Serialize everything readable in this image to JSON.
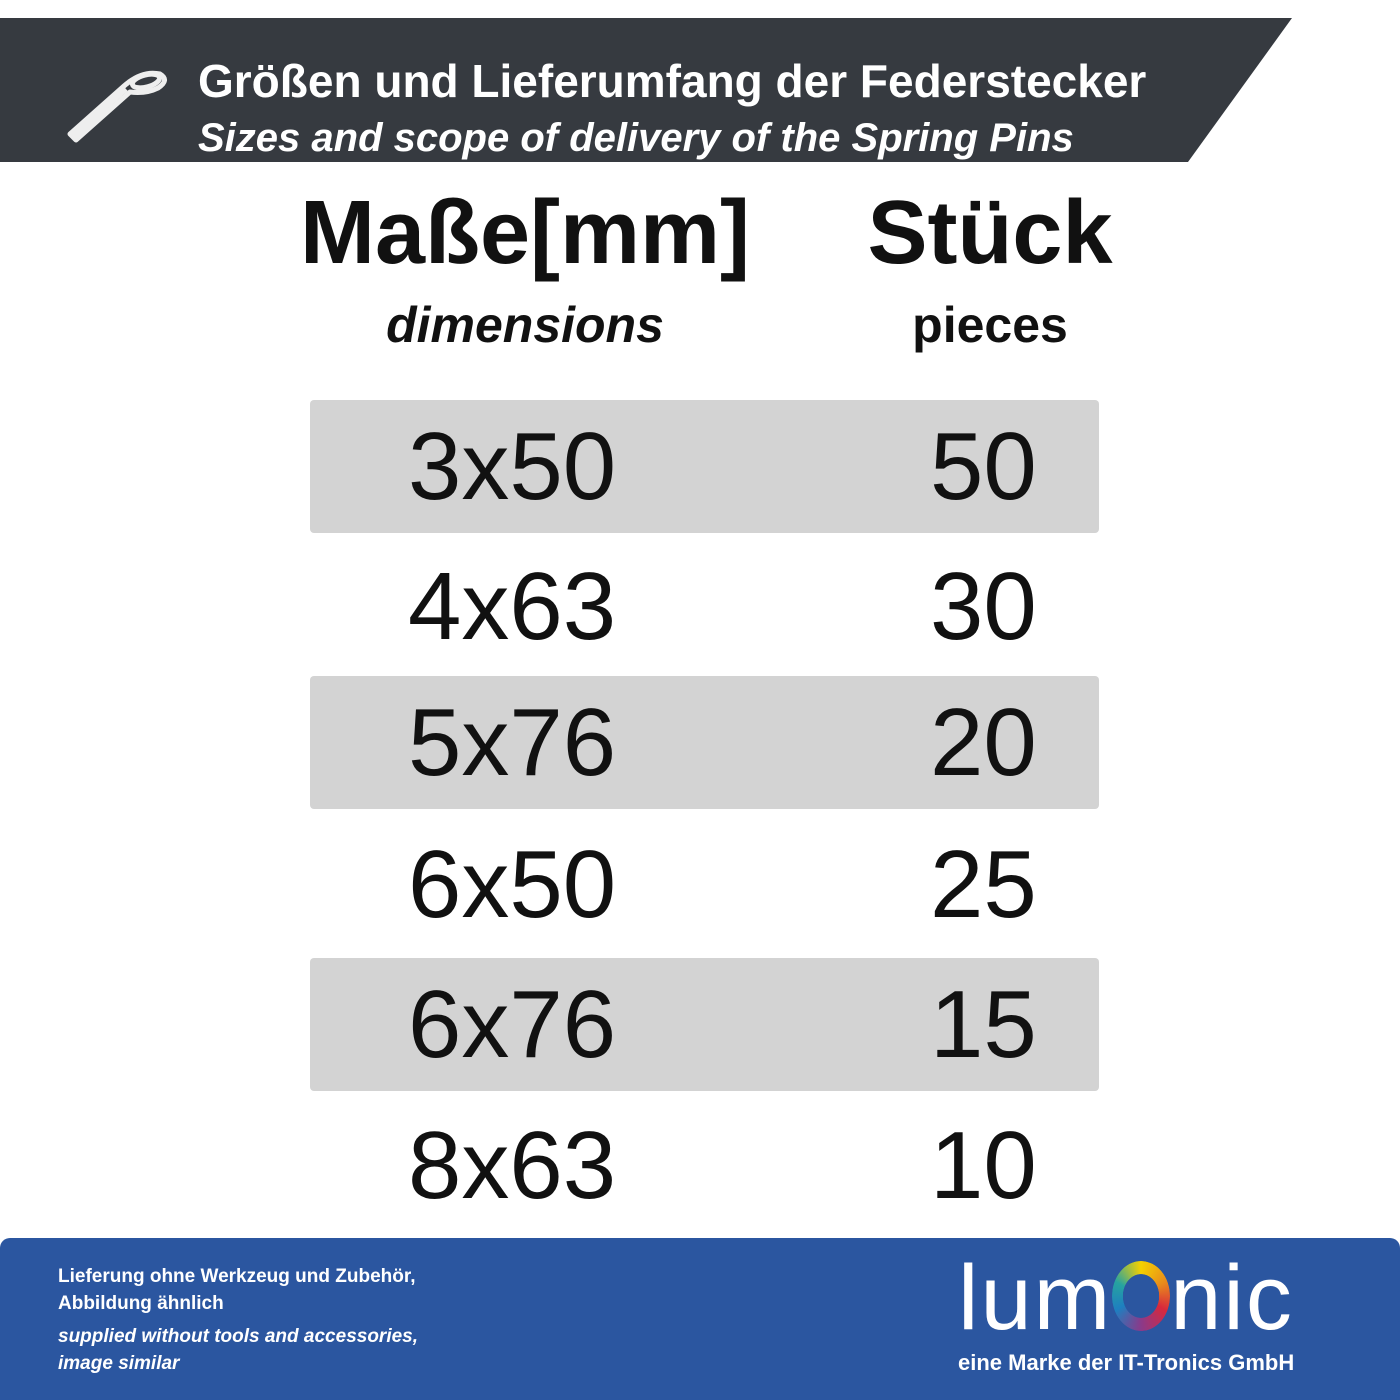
{
  "header": {
    "title": "Größen und Lieferumfang der Federstecker",
    "subtitle": "Sizes and scope of delivery of the Spring Pins",
    "icon": "spring-pin-icon",
    "background": "#363a40"
  },
  "columns": {
    "dimensions": {
      "label": "Maße[mm]",
      "sublabel": "dimensions"
    },
    "pieces": {
      "label": "Stück",
      "sublabel": "pieces"
    }
  },
  "rows": [
    {
      "dimension": "3x50",
      "pieces": "50"
    },
    {
      "dimension": "4x63",
      "pieces": "30"
    },
    {
      "dimension": "5x76",
      "pieces": "20"
    },
    {
      "dimension": "6x50",
      "pieces": "25"
    },
    {
      "dimension": "6x76",
      "pieces": "15"
    },
    {
      "dimension": "8x63",
      "pieces": "10"
    }
  ],
  "footer": {
    "note_de_1": "Lieferung ohne Werkzeug und Zubehör,",
    "note_de_2": "Abbildung ähnlich",
    "note_en_1": "supplied without tools and accessories,",
    "note_en_2": "image similar",
    "logo_text": "lumOnic",
    "logo_pre": "lum",
    "logo_post": "nic",
    "tagline": "eine Marke der IT-Tronics GmbH",
    "background": "#2b56a0"
  }
}
